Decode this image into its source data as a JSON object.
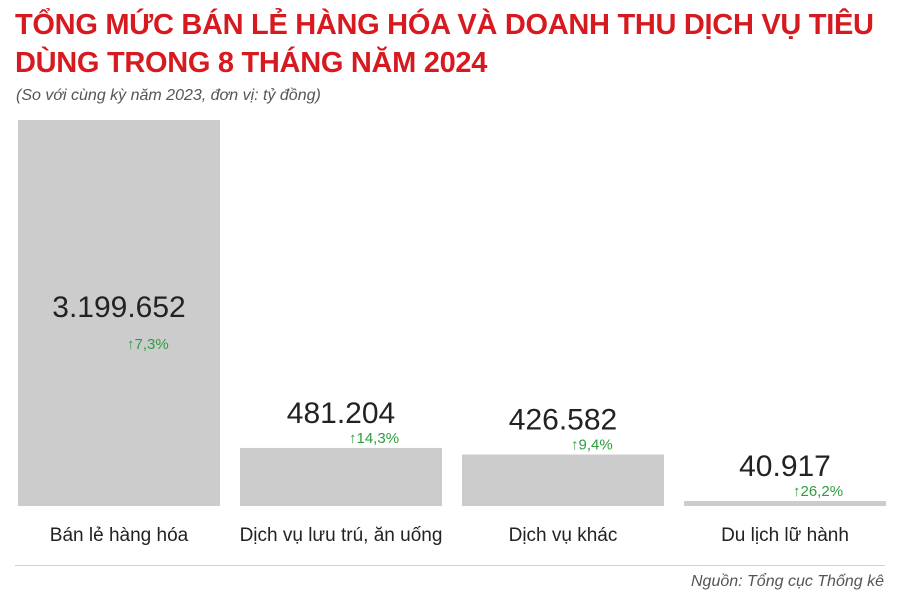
{
  "header": {
    "title": "TỔNG MỨC BÁN LẺ HÀNG HÓA VÀ DOANH THU DỊCH VỤ TIÊU DÙNG TRONG 8 THÁNG NĂM 2024",
    "subtitle": "(So với cùng kỳ năm 2023, đơn vị: tỷ đồng)"
  },
  "footer": {
    "source": "Nguồn: Tổng cục Thống kê"
  },
  "chart_data": {
    "type": "bar",
    "title": "TỔNG MỨC BÁN LẺ HÀNG HÓA VÀ DOANH THU DỊCH VỤ TIÊU DÙNG TRONG 8 THÁNG NĂM 2024",
    "xlabel": "",
    "ylabel": "",
    "categories": [
      "Bán lẻ hàng hóa",
      "Dịch vụ lưu trú, ăn uống",
      "Dịch vụ khác",
      "Du lịch lữ hành"
    ],
    "values": [
      3199652,
      481204,
      426582,
      40917
    ],
    "value_labels": [
      "3.199.652",
      "481.204",
      "426.582",
      "40.917"
    ],
    "change_labels": [
      "↑7,3%",
      "↑14,3%",
      "↑9,4%",
      "↑26,2%"
    ],
    "ylim": [
      0,
      3199652
    ],
    "grid": false,
    "legend": "none",
    "colors": {
      "bar": "#cccccc",
      "value": "#222222",
      "change": "#2e9e3e"
    }
  }
}
